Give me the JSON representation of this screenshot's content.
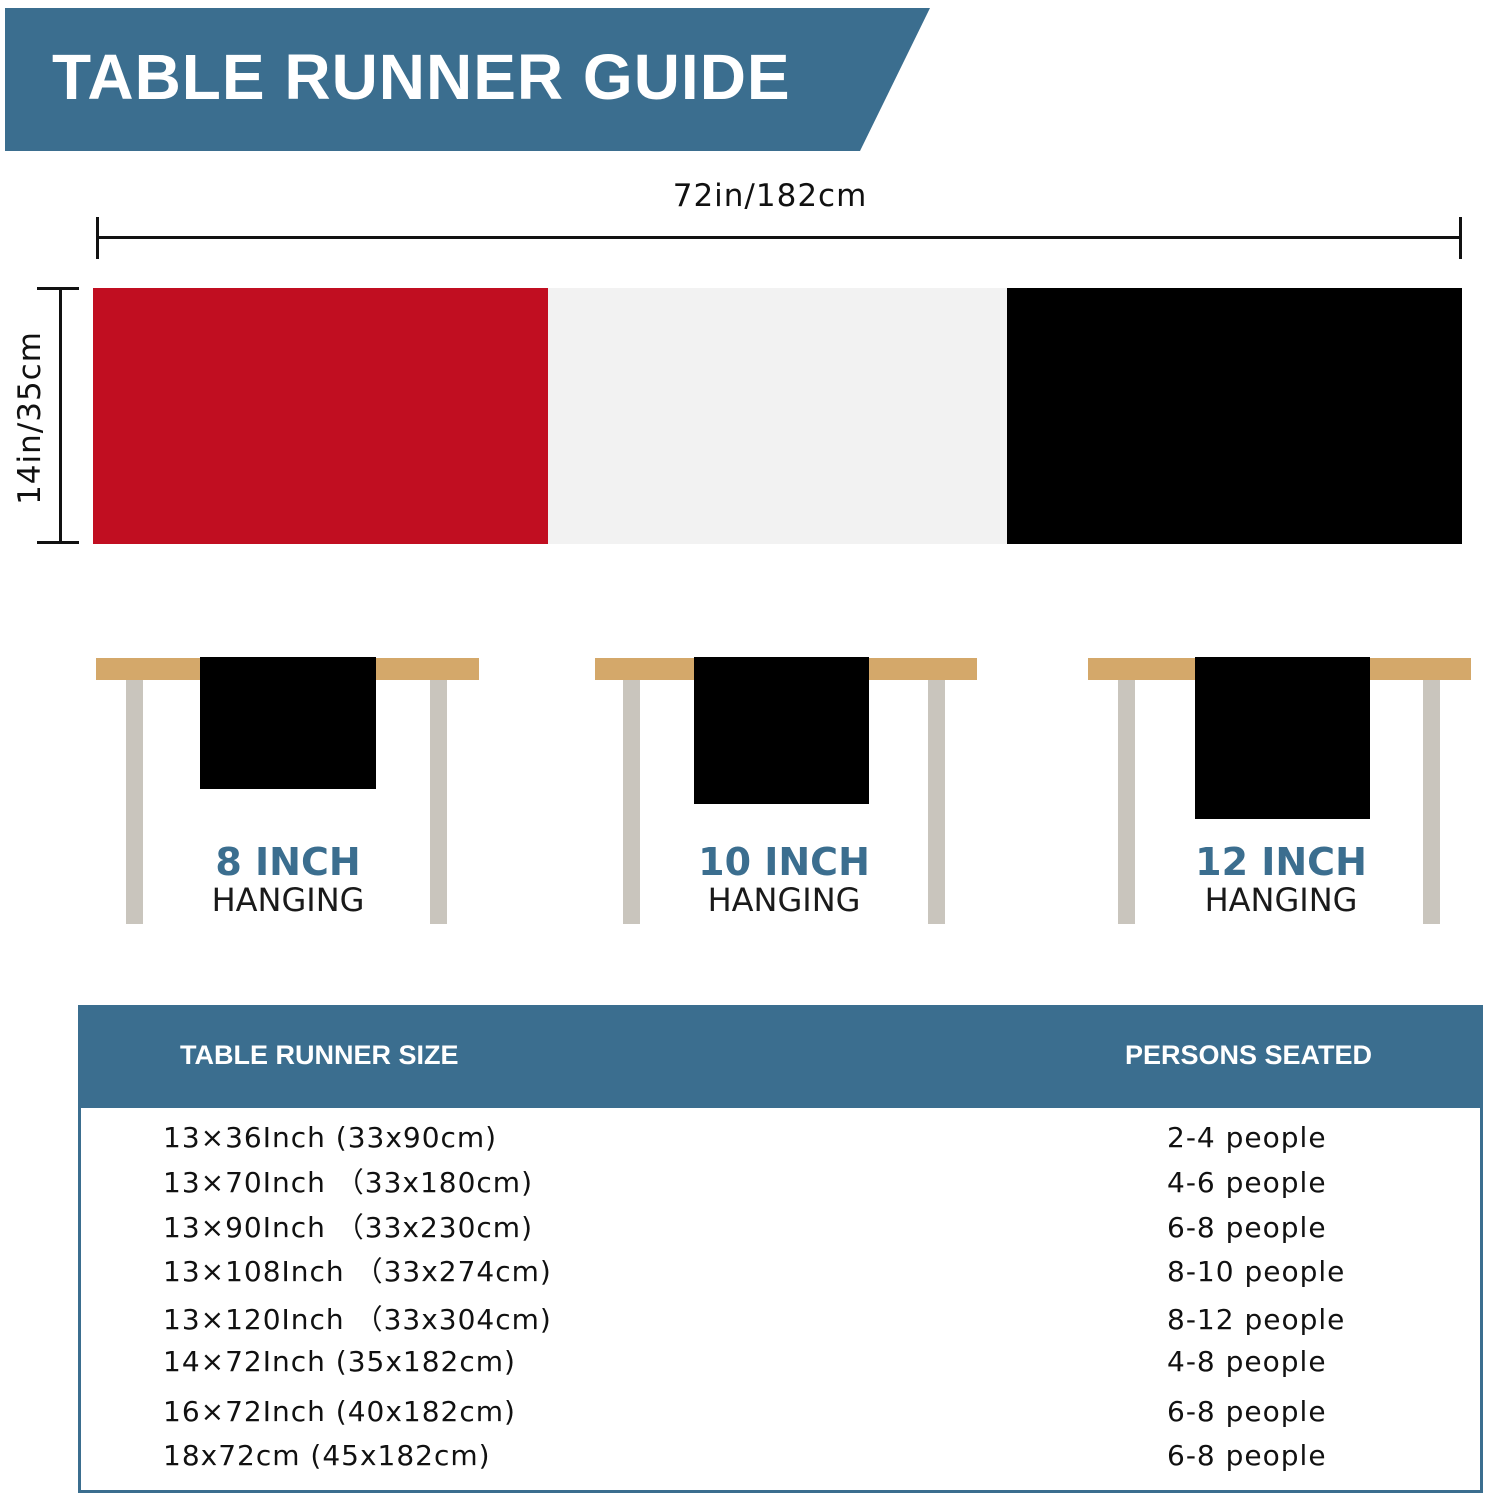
{
  "title": "TABLE RUNNER GUIDE",
  "dimensions": {
    "length": "72in/182cm",
    "width": "14in/35cm"
  },
  "runner_colors": [
    "#c10e21",
    "#f2f2f2",
    "#000000"
  ],
  "accent_color": "#3b6e8f",
  "hanging": [
    {
      "size": "8 INCH",
      "label": "HANGING"
    },
    {
      "size": "10 INCH",
      "label": "HANGING"
    },
    {
      "size": "12 INCH",
      "label": "HANGING"
    }
  ],
  "table": {
    "headers": [
      "TABLE RUNNER SIZE",
      "PERSONS SEATED"
    ],
    "rows": [
      [
        "13×36Inch (33x90cm)",
        "2-4 people"
      ],
      [
        "13×70Inch （33x180cm)",
        "4-6 people"
      ],
      [
        "13×90Inch （33x230cm)",
        "6-8 people"
      ],
      [
        "13×108Inch （33x274cm)",
        "8-10 people"
      ],
      [
        "13×120Inch （33x304cm)",
        "8-12 people"
      ],
      [
        "14×72Inch (35x182cm)",
        "4-8 people"
      ],
      [
        "16×72Inch (40x182cm)",
        "6-8 people"
      ],
      [
        "18x72cm (45x182cm)",
        "6-8 people"
      ]
    ]
  }
}
